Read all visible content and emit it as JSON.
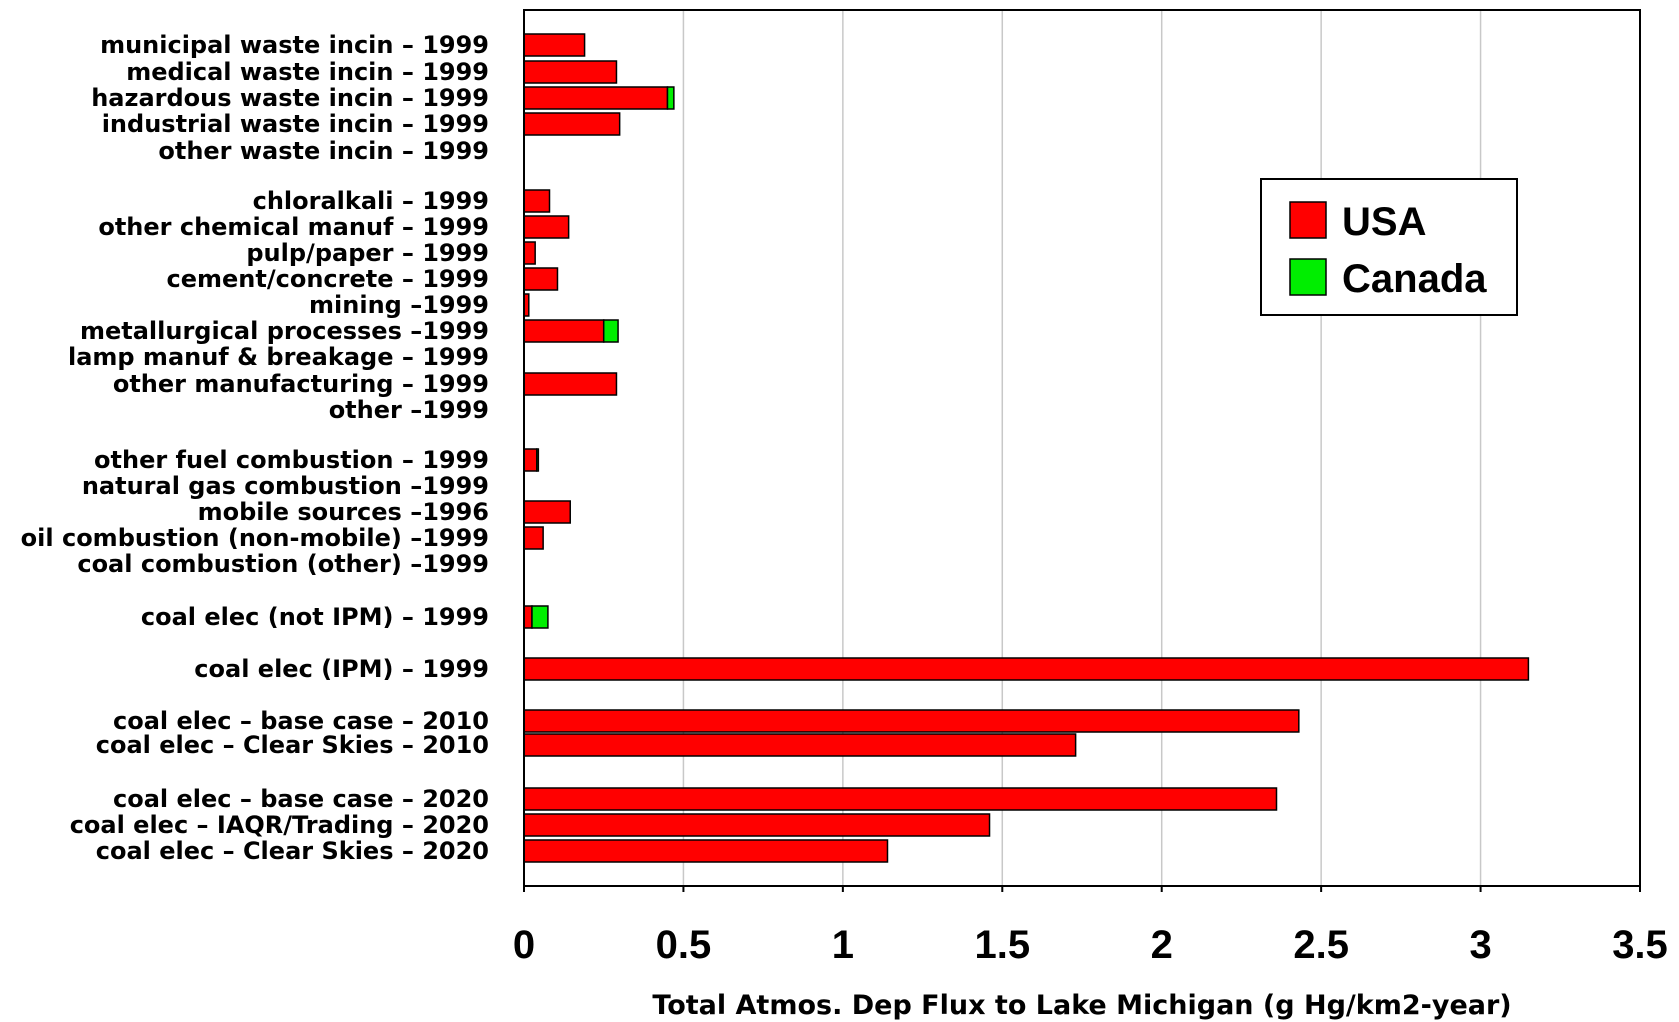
{
  "chart_data": {
    "type": "bar",
    "orientation": "horizontal",
    "stacked": true,
    "xlabel": "Total Atmos. Dep Flux to Lake Michigan (g Hg/km2-year)",
    "xlim": [
      0,
      3.5
    ],
    "xticks": [
      "0",
      "0.5",
      "1",
      "1.5",
      "2",
      "2.5",
      "3",
      "3.5"
    ],
    "grid": "vertical",
    "legend_position": "top-right",
    "series": [
      {
        "name": "USA",
        "color": "#ff0000",
        "values": [
          0.19,
          0.29,
          0.45,
          0.3,
          0,
          0.08,
          0.14,
          0.035,
          0.105,
          0.015,
          0.25,
          0,
          0.29,
          0,
          0.04,
          0,
          0.145,
          0.06,
          0,
          0.025,
          3.15,
          2.43,
          1.73,
          2.36,
          1.46,
          1.14
        ]
      },
      {
        "name": "Canada",
        "color": "#00ee00",
        "values": [
          0,
          0,
          0.02,
          0,
          0,
          0,
          0,
          0,
          0,
          0,
          0.045,
          0,
          0,
          0,
          0.005,
          0,
          0,
          0,
          0,
          0.05,
          0,
          0,
          0,
          0,
          0,
          0
        ]
      }
    ],
    "categories": [
      "municipal waste incin – 1999",
      "medical waste incin – 1999",
      "hazardous waste incin – 1999",
      "industrial waste incin – 1999",
      "other waste incin – 1999",
      "chloralkali – 1999",
      "other chemical manuf – 1999",
      "pulp/paper – 1999",
      "cement/concrete – 1999",
      "mining –1999",
      "metallurgical processes –1999",
      "lamp manuf & breakage – 1999",
      "other manufacturing – 1999",
      "other –1999",
      "other fuel combustion – 1999",
      "natural gas combustion –1999",
      "mobile sources –1996",
      "oil combustion (non-mobile) –1999",
      "coal combustion (other) –1999",
      "coal elec (not IPM) – 1999",
      "coal elec (IPM) – 1999",
      "coal elec – base case – 2010",
      "coal elec – Clear Skies – 2010",
      "coal elec – base case – 2020",
      "coal elec – IAQR/Trading – 2020",
      "coal elec – Clear Skies – 2020"
    ]
  }
}
